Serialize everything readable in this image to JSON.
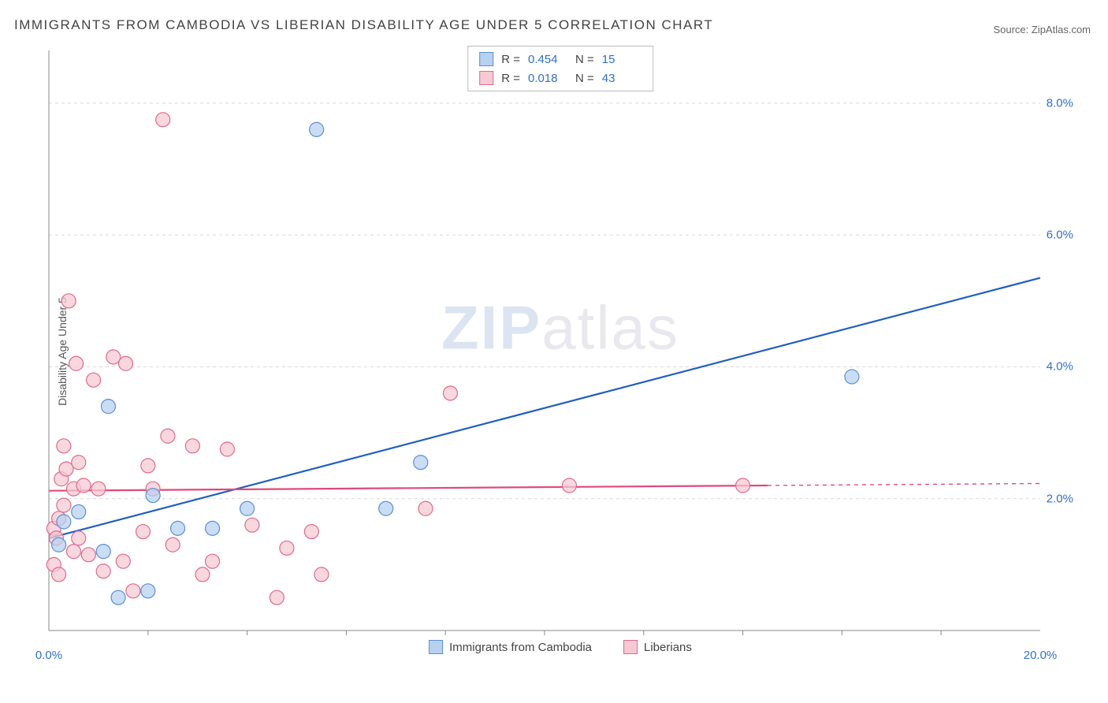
{
  "title": "IMMIGRANTS FROM CAMBODIA VS LIBERIAN DISABILITY AGE UNDER 5 CORRELATION CHART",
  "source_label": "Source: ZipAtlas.com",
  "ylabel": "Disability Age Under 5",
  "watermark_a": "ZIP",
  "watermark_b": "atlas",
  "chart": {
    "type": "scatter",
    "xlim": [
      0,
      20
    ],
    "ylim": [
      0,
      8.8
    ],
    "x_ticks": [
      0,
      20
    ],
    "x_tick_labels": [
      "0.0%",
      "20.0%"
    ],
    "y_ticks": [
      2,
      4,
      6,
      8
    ],
    "y_tick_labels": [
      "2.0%",
      "4.0%",
      "6.0%",
      "8.0%"
    ],
    "x_minor_ticks": [
      2,
      4,
      6,
      8,
      10,
      12,
      14,
      16,
      18
    ],
    "background_color": "#ffffff",
    "grid_color": "#d8d8d8",
    "axis_color": "#888888",
    "tick_label_color": "#2f6fd0",
    "marker_radius": 9,
    "marker_stroke_width": 1.2,
    "line_width": 2.2,
    "series": [
      {
        "name": "Immigrants from Cambodia",
        "fill_color": "#b7d1f0",
        "stroke_color": "#5a8fd6",
        "line_color": "#1f5fbf",
        "r": "0.454",
        "n": "15",
        "regression": {
          "x1": 0,
          "y1": 1.4,
          "x2": 20,
          "y2": 5.35
        },
        "points": [
          [
            0.2,
            1.3
          ],
          [
            0.3,
            1.65
          ],
          [
            0.6,
            1.8
          ],
          [
            1.1,
            1.2
          ],
          [
            1.2,
            3.4
          ],
          [
            1.4,
            0.5
          ],
          [
            2.0,
            0.6
          ],
          [
            2.1,
            2.05
          ],
          [
            2.6,
            1.55
          ],
          [
            3.3,
            1.55
          ],
          [
            4.0,
            1.85
          ],
          [
            5.4,
            7.6
          ],
          [
            6.8,
            1.85
          ],
          [
            7.5,
            2.55
          ],
          [
            16.2,
            3.85
          ]
        ]
      },
      {
        "name": "Liberians",
        "fill_color": "#f7c9d4",
        "stroke_color": "#e06a8a",
        "line_color": "#e04a7a",
        "r": "0.018",
        "n": "43",
        "regression": {
          "x1": 0,
          "y1": 2.12,
          "x2": 14.5,
          "y2": 2.2
        },
        "regression_ext": {
          "x1": 14.5,
          "y1": 2.2,
          "x2": 20,
          "y2": 2.23
        },
        "points": [
          [
            0.1,
            1.0
          ],
          [
            0.1,
            1.55
          ],
          [
            0.15,
            1.4
          ],
          [
            0.2,
            0.85
          ],
          [
            0.2,
            1.7
          ],
          [
            0.25,
            2.3
          ],
          [
            0.3,
            2.8
          ],
          [
            0.3,
            1.9
          ],
          [
            0.35,
            2.45
          ],
          [
            0.4,
            5.0
          ],
          [
            0.5,
            1.2
          ],
          [
            0.5,
            2.15
          ],
          [
            0.55,
            4.05
          ],
          [
            0.6,
            1.4
          ],
          [
            0.6,
            2.55
          ],
          [
            0.7,
            2.2
          ],
          [
            0.8,
            1.15
          ],
          [
            0.9,
            3.8
          ],
          [
            1.0,
            2.15
          ],
          [
            1.1,
            0.9
          ],
          [
            1.3,
            4.15
          ],
          [
            1.5,
            1.05
          ],
          [
            1.55,
            4.05
          ],
          [
            1.7,
            0.6
          ],
          [
            1.9,
            1.5
          ],
          [
            2.0,
            2.5
          ],
          [
            2.1,
            2.15
          ],
          [
            2.3,
            7.75
          ],
          [
            2.4,
            2.95
          ],
          [
            2.5,
            1.3
          ],
          [
            2.9,
            2.8
          ],
          [
            3.1,
            0.85
          ],
          [
            3.3,
            1.05
          ],
          [
            3.6,
            2.75
          ],
          [
            4.1,
            1.6
          ],
          [
            4.6,
            0.5
          ],
          [
            4.8,
            1.25
          ],
          [
            5.3,
            1.5
          ],
          [
            5.5,
            0.85
          ],
          [
            7.6,
            1.85
          ],
          [
            8.1,
            3.6
          ],
          [
            10.5,
            2.2
          ],
          [
            14.0,
            2.2
          ]
        ]
      }
    ],
    "bottom_legend": [
      {
        "label": "Immigrants from Cambodia",
        "fill": "#b7d1f0",
        "stroke": "#5a8fd6"
      },
      {
        "label": "Liberians",
        "fill": "#f7c9d4",
        "stroke": "#e06a8a"
      }
    ]
  }
}
